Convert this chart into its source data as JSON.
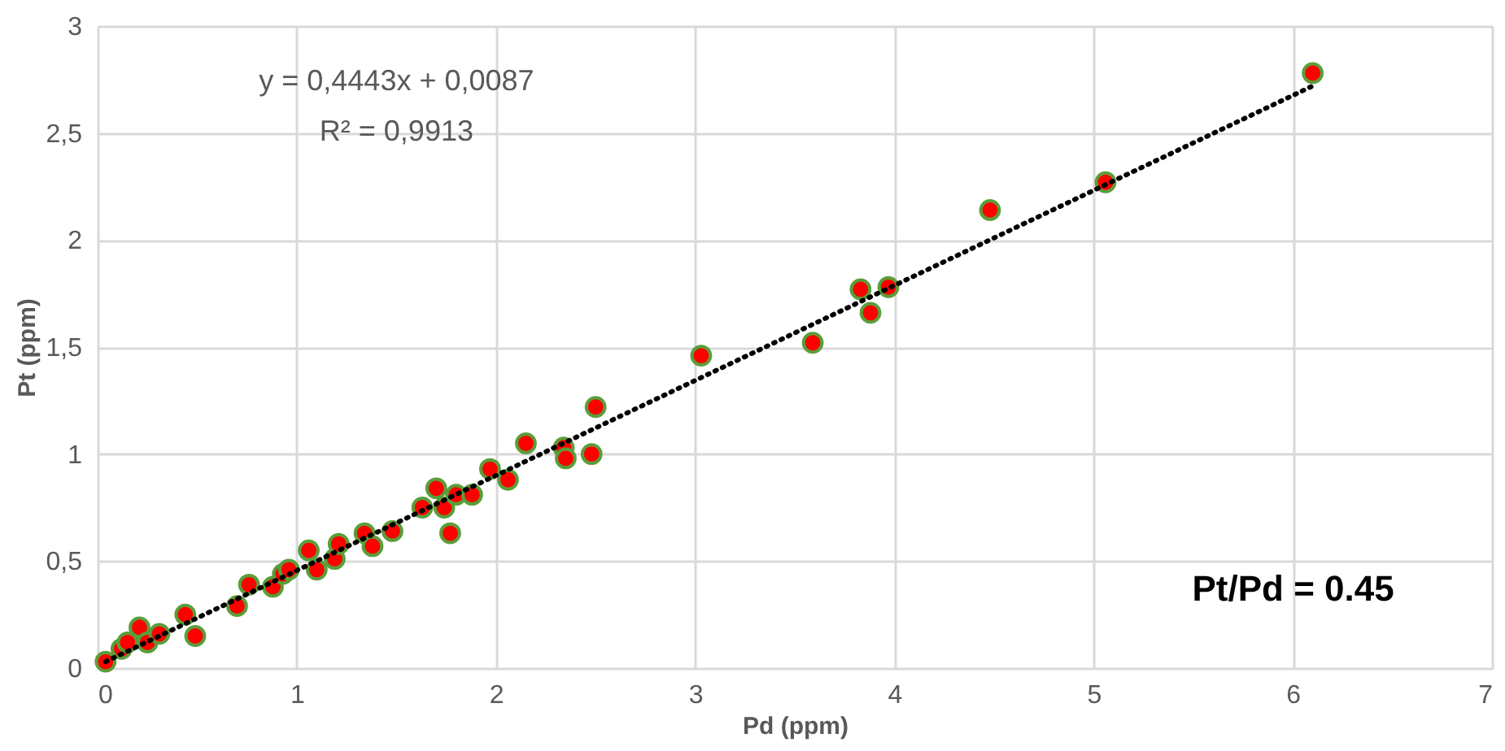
{
  "chart_data": {
    "type": "scatter",
    "xlabel": "Pd (ppm)",
    "ylabel": "Pt (ppm)",
    "xlim": [
      0,
      7
    ],
    "xticks": [
      0,
      1,
      2,
      3,
      4,
      5,
      6,
      7
    ],
    "ylim": [
      0,
      3
    ],
    "yticks": [
      0,
      {
        "value": 0.5,
        "label": "0,5"
      },
      1,
      {
        "value": 1.5,
        "label": "1,5"
      },
      2,
      {
        "value": 2.5,
        "label": "2,5"
      },
      3
    ],
    "grid": true,
    "marker": "circle",
    "series": [
      {
        "type": "scatter",
        "color": "#ff0000",
        "x": [
          0.04,
          0.12,
          0.15,
          0.21,
          0.25,
          0.31,
          0.44,
          0.49,
          0.7,
          0.76,
          0.88,
          0.93,
          0.96,
          1.06,
          1.1,
          1.19,
          1.21,
          1.34,
          1.38,
          1.48,
          1.63,
          1.7,
          1.74,
          1.77,
          1.8,
          1.88,
          1.97,
          2.06,
          2.15,
          2.34,
          2.35,
          2.48,
          2.5,
          3.03,
          3.59,
          3.83,
          3.88,
          3.97,
          4.48,
          5.06,
          6.1
        ],
        "values": [
          0.03,
          0.09,
          0.12,
          0.19,
          0.12,
          0.16,
          0.25,
          0.15,
          0.29,
          0.39,
          0.38,
          0.44,
          0.46,
          0.55,
          0.46,
          0.51,
          0.58,
          0.63,
          0.57,
          0.64,
          0.75,
          0.84,
          0.75,
          0.63,
          0.81,
          0.81,
          0.93,
          0.88,
          1.05,
          1.03,
          0.98,
          1.0,
          1.22,
          1.46,
          1.52,
          1.77,
          1.66,
          1.78,
          2.14,
          2.27,
          2.78
        ]
      },
      {
        "type": "line",
        "color": "#000000",
        "line_style": "dotted",
        "marker": "none",
        "x": [
          0.04,
          6.1
        ],
        "values": [
          0.03,
          2.72
        ]
      }
    ],
    "annotations": [
      "y = 0,4443x + 0,0087",
      "R² = 0,9913",
      "Pt/Pd = 0.45"
    ]
  }
}
